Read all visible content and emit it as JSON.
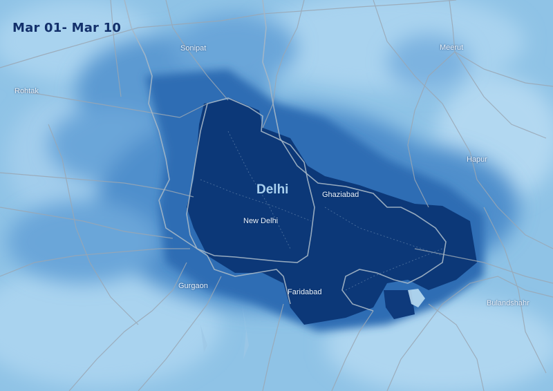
{
  "title": "Mar 01- Mar 10",
  "cities": {
    "sonipat": "Sonipat",
    "meerut": "Meerut",
    "rohtak": "Rohtak",
    "hapur": "Hapur",
    "delhi": "Delhi",
    "ghaziabad": "Ghaziabad",
    "new_delhi": "New Delhi",
    "gurgaon": "Gurgaon",
    "faridabad": "Faridabad",
    "bulandshahr": "Bulandshahr"
  },
  "colors": {
    "background": "#8fc3e6",
    "light_band": "#a9d3ef",
    "medium": "#4f8fcc",
    "medium_dark": "#2d6db4",
    "dark_core": "#0c3878",
    "roads": "#9aa7b4",
    "title": "#13306b"
  }
}
